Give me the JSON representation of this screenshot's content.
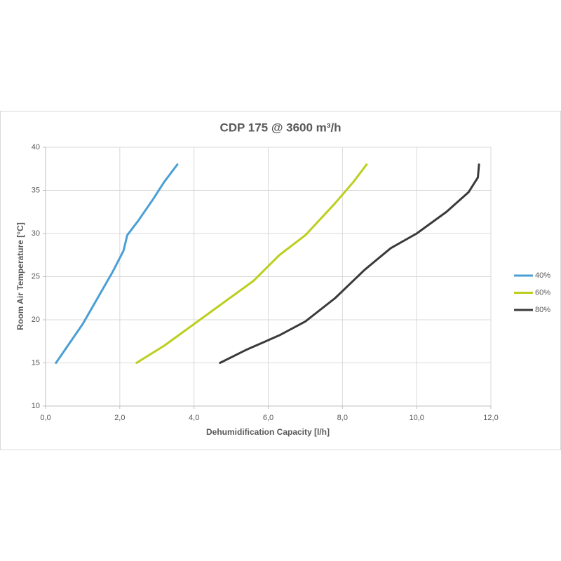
{
  "chart_data": {
    "type": "line",
    "title": "CDP 175 @ 3600 m³/h",
    "x_label": "Dehumidification Capacity [l/h]",
    "y_label": "Room Air Temperature [°C]",
    "xlim": [
      0,
      12
    ],
    "ylim": [
      10,
      40
    ],
    "xticks": [
      {
        "value": 0,
        "label": "0,0"
      },
      {
        "value": 2,
        "label": "2,0"
      },
      {
        "value": 4,
        "label": "4,0"
      },
      {
        "value": 6,
        "label": "6,0"
      },
      {
        "value": 8,
        "label": "8,0"
      },
      {
        "value": 10,
        "label": "10,0"
      },
      {
        "value": 12,
        "label": "12,0"
      }
    ],
    "yticks": [
      10,
      15,
      20,
      25,
      30,
      35,
      40
    ],
    "grid": true,
    "legend": "right",
    "series": [
      {
        "name": "40%",
        "color": "#4a9fd5",
        "x": [
          0.28,
          0.6,
          1.0,
          1.4,
          1.8,
          2.1,
          2.2,
          2.5,
          2.9,
          3.2,
          3.55
        ],
        "values": [
          15,
          17,
          19.5,
          22.5,
          25.5,
          28,
          29.8,
          31.5,
          34,
          36,
          38
        ]
      },
      {
        "name": "60%",
        "color": "#bccf1e",
        "x": [
          2.45,
          3.2,
          4.0,
          4.8,
          5.6,
          6.3,
          7.0,
          7.8,
          8.3,
          8.65
        ],
        "values": [
          15,
          17,
          19.5,
          22,
          24.5,
          27.5,
          29.8,
          33.5,
          36,
          38
        ]
      },
      {
        "name": "80%",
        "color": "#3a3a3a",
        "x": [
          4.7,
          5.4,
          6.3,
          7.0,
          7.8,
          8.6,
          9.3,
          10.0,
          10.8,
          11.4,
          11.65,
          11.68
        ],
        "values": [
          15,
          16.5,
          18.2,
          19.8,
          22.5,
          25.8,
          28.3,
          30,
          32.5,
          34.8,
          36.5,
          38
        ]
      }
    ]
  }
}
